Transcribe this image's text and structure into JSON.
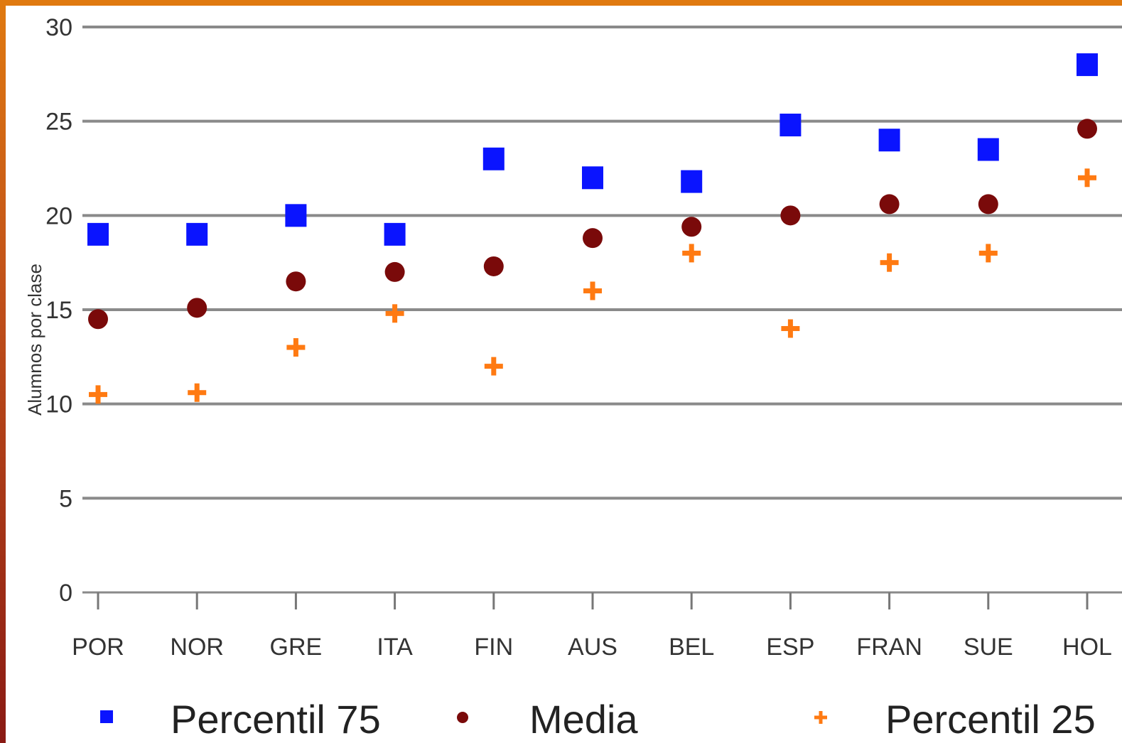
{
  "colors": {
    "percentil75": "#0a14ff",
    "media": "#7a0a0a",
    "percentil25": "#ff7a12",
    "grid": "#8a8a8a",
    "frame": "#d06a10"
  },
  "chart_data": {
    "type": "scatter",
    "ylabel": "Alumnos por clase",
    "ylim": [
      0,
      30
    ],
    "yticks": [
      0,
      5,
      10,
      15,
      20,
      25,
      30
    ],
    "grid": true,
    "legend_position": "bottom",
    "categories": [
      "POR",
      "NOR",
      "GRE",
      "ITA",
      "FIN",
      "AUS",
      "BEL",
      "ESP",
      "FRAN",
      "SUE",
      "HOL"
    ],
    "series": [
      {
        "name": "Percentil 75",
        "marker": "square",
        "values": [
          19,
          19,
          20,
          19,
          23,
          22,
          21.8,
          24.8,
          24,
          23.5,
          28
        ]
      },
      {
        "name": "Media",
        "marker": "circle",
        "values": [
          14.5,
          15.1,
          16.5,
          17,
          17.3,
          18.8,
          19.4,
          20,
          20.6,
          20.6,
          24.6
        ]
      },
      {
        "name": "Percentil 25",
        "marker": "plus",
        "values": [
          10.5,
          10.6,
          13,
          14.8,
          12,
          16,
          18,
          14,
          17.5,
          18,
          22
        ]
      }
    ]
  }
}
